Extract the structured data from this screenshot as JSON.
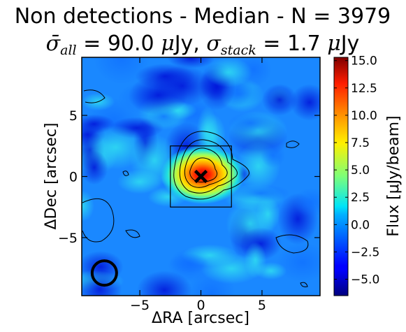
{
  "chart_data": {
    "type": "heatmap",
    "title_line1": "Non detections - Median - N = 3979",
    "title_line2_parts": {
      "sigma_all_label": "σ̄",
      "sigma_all_sub": "all",
      "sigma_all_value": " = 90.0 ",
      "mu1": "μ",
      "unit1": "Jy, ",
      "sigma_stack_label": "σ",
      "sigma_stack_sub": "stack",
      "sigma_stack_value": " = 1.7 ",
      "mu2": "μ",
      "unit2": "Jy"
    },
    "xlabel": "ΔRA [arcsec]",
    "ylabel": "ΔDec [arcsec]",
    "colorbar_label": "Flux [μJy/beam]",
    "xlim": [
      -9.75,
      9.75
    ],
    "ylim": [
      -9.75,
      9.75
    ],
    "x_ticks": [
      {
        "value": -5,
        "label": "−5"
      },
      {
        "value": 0,
        "label": "0"
      },
      {
        "value": 5,
        "label": "5"
      }
    ],
    "y_ticks": [
      {
        "value": -5,
        "label": "−5"
      },
      {
        "value": 0,
        "label": "0"
      },
      {
        "value": 5,
        "label": "5"
      }
    ],
    "colorbar_range": [
      -6.5,
      15.3
    ],
    "colorbar_ticks": [
      {
        "value": 15.0,
        "label": "15.0"
      },
      {
        "value": 12.5,
        "label": "12.5"
      },
      {
        "value": 10.0,
        "label": "10.0"
      },
      {
        "value": 7.5,
        "label": "7.5"
      },
      {
        "value": 5.0,
        "label": "5.0"
      },
      {
        "value": 2.5,
        "label": "2.5"
      },
      {
        "value": 0.0,
        "label": "0.0"
      },
      {
        "value": -2.5,
        "label": "−2.5"
      },
      {
        "value": -5.0,
        "label": "−5.0"
      }
    ],
    "colormap": "jet",
    "source_peak": {
      "x": 0.0,
      "y": 0.0,
      "value": 15.0,
      "marker": "x"
    },
    "aperture_box": {
      "x_min": -2.5,
      "x_max": 2.5,
      "y_min": -2.5,
      "y_max": 2.5
    },
    "beam_circle": {
      "x": -7.9,
      "y": -7.9,
      "radius": 1.0
    },
    "contour_levels": [
      3.4,
      5.1,
      6.8,
      8.5
    ],
    "grid": false
  }
}
